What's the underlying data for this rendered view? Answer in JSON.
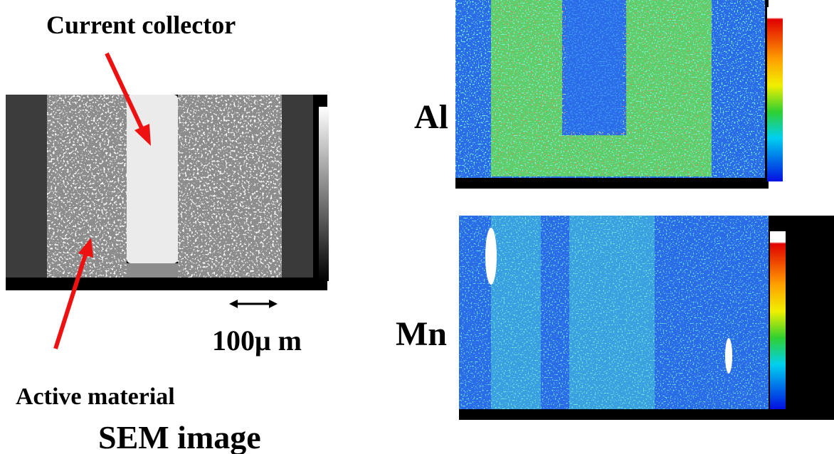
{
  "sem_panel": {
    "top_label": "Current collector",
    "bottom_label": "Active material",
    "scale_label": "100μ m",
    "caption": "SEM image"
  },
  "maps": [
    {
      "element": "Al"
    },
    {
      "element": "Mn"
    }
  ]
}
